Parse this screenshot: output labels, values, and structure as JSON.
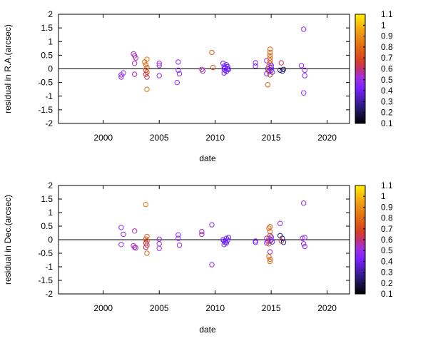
{
  "chart_data": [
    {
      "type": "scatter",
      "xlabel": "date",
      "ylabel": "residual in R.A.(arcsec)",
      "xlim": [
        1996,
        2022
      ],
      "ylim": [
        -2,
        2
      ],
      "xticks": [
        "2000",
        "2005",
        "2010",
        "2015",
        "2020"
      ],
      "yticks": [
        "-2",
        "-1.5",
        "-1",
        "-0.5",
        "0",
        "0.5",
        "1",
        "1.5",
        "2"
      ],
      "zero_line": 0,
      "colorbar": {
        "min": 0.1,
        "max": 1.1,
        "ticks": [
          "0.1",
          "0.2",
          "0.3",
          "0.4",
          "0.5",
          "0.6",
          "0.7",
          "0.8",
          "0.9",
          "1",
          "1.1"
        ]
      },
      "points": [
        {
          "x": 2001.6,
          "y": -0.3,
          "c": 0.45
        },
        {
          "x": 2001.6,
          "y": -0.22,
          "c": 0.45
        },
        {
          "x": 2001.8,
          "y": -0.15,
          "c": 0.45
        },
        {
          "x": 2002.7,
          "y": 0.55,
          "c": 0.5
        },
        {
          "x": 2002.8,
          "y": 0.48,
          "c": 0.5
        },
        {
          "x": 2002.9,
          "y": 0.4,
          "c": 0.5
        },
        {
          "x": 2002.8,
          "y": 0.2,
          "c": 0.5
        },
        {
          "x": 2002.8,
          "y": -0.2,
          "c": 0.5
        },
        {
          "x": 2003.7,
          "y": 0.25,
          "c": 0.75
        },
        {
          "x": 2003.8,
          "y": 0.15,
          "c": 0.75
        },
        {
          "x": 2003.9,
          "y": 0.35,
          "c": 0.8
        },
        {
          "x": 2003.9,
          "y": 0.05,
          "c": 0.7
        },
        {
          "x": 2003.8,
          "y": -0.05,
          "c": 0.7
        },
        {
          "x": 2003.9,
          "y": -0.12,
          "c": 0.7
        },
        {
          "x": 2003.8,
          "y": -0.2,
          "c": 0.6
        },
        {
          "x": 2003.9,
          "y": -0.3,
          "c": 0.6
        },
        {
          "x": 2003.9,
          "y": -0.75,
          "c": 0.8
        },
        {
          "x": 2005.0,
          "y": 0.2,
          "c": 0.45
        },
        {
          "x": 2005.0,
          "y": 0.12,
          "c": 0.45
        },
        {
          "x": 2005.0,
          "y": -0.25,
          "c": 0.45
        },
        {
          "x": 2006.7,
          "y": 0.25,
          "c": 0.45
        },
        {
          "x": 2006.7,
          "y": -0.05,
          "c": 0.45
        },
        {
          "x": 2006.8,
          "y": -0.18,
          "c": 0.45
        },
        {
          "x": 2006.6,
          "y": -0.5,
          "c": 0.45
        },
        {
          "x": 2008.8,
          "y": -0.02,
          "c": 0.5
        },
        {
          "x": 2008.9,
          "y": -0.08,
          "c": 0.5
        },
        {
          "x": 2009.7,
          "y": 0.6,
          "c": 0.75
        },
        {
          "x": 2009.8,
          "y": 0.05,
          "c": 0.7
        },
        {
          "x": 2010.7,
          "y": 0.2,
          "c": 0.35
        },
        {
          "x": 2010.8,
          "y": 0.1,
          "c": 0.35
        },
        {
          "x": 2010.9,
          "y": 0.05,
          "c": 0.35
        },
        {
          "x": 2011.0,
          "y": 0.15,
          "c": 0.35
        },
        {
          "x": 2010.8,
          "y": 0.0,
          "c": 0.35
        },
        {
          "x": 2010.9,
          "y": -0.05,
          "c": 0.35
        },
        {
          "x": 2011.0,
          "y": -0.1,
          "c": 0.35
        },
        {
          "x": 2010.8,
          "y": -0.15,
          "c": 0.35
        },
        {
          "x": 2011.1,
          "y": 0.08,
          "c": 0.35
        },
        {
          "x": 2011.2,
          "y": -0.02,
          "c": 0.35
        },
        {
          "x": 2011.1,
          "y": 0.0,
          "c": 0.35
        },
        {
          "x": 2013.6,
          "y": 0.22,
          "c": 0.4
        },
        {
          "x": 2013.6,
          "y": 0.1,
          "c": 0.4
        },
        {
          "x": 2014.6,
          "y": 0.3,
          "c": 0.45
        },
        {
          "x": 2014.7,
          "y": 0.0,
          "c": 0.4
        },
        {
          "x": 2014.8,
          "y": -0.1,
          "c": 0.4
        },
        {
          "x": 2014.6,
          "y": -0.18,
          "c": 0.4
        },
        {
          "x": 2014.9,
          "y": 0.72,
          "c": 0.75
        },
        {
          "x": 2014.9,
          "y": 0.6,
          "c": 0.75
        },
        {
          "x": 2014.9,
          "y": 0.5,
          "c": 0.75
        },
        {
          "x": 2014.9,
          "y": 0.4,
          "c": 0.75
        },
        {
          "x": 2014.9,
          "y": 0.3,
          "c": 0.75
        },
        {
          "x": 2014.9,
          "y": 0.2,
          "c": 0.7
        },
        {
          "x": 2014.8,
          "y": 0.1,
          "c": 0.7
        },
        {
          "x": 2014.8,
          "y": -0.05,
          "c": 0.7
        },
        {
          "x": 2014.9,
          "y": -0.22,
          "c": 0.7
        },
        {
          "x": 2014.7,
          "y": -0.58,
          "c": 0.75
        },
        {
          "x": 2015.0,
          "y": 0.05,
          "c": 0.35
        },
        {
          "x": 2015.0,
          "y": -0.05,
          "c": 0.35
        },
        {
          "x": 2015.1,
          "y": -0.12,
          "c": 0.35
        },
        {
          "x": 2015.0,
          "y": 0.12,
          "c": 0.35
        },
        {
          "x": 2015.9,
          "y": 0.22,
          "c": 0.6
        },
        {
          "x": 2015.8,
          "y": -0.05,
          "c": 0.25
        },
        {
          "x": 2016.0,
          "y": -0.08,
          "c": 0.25
        },
        {
          "x": 2016.1,
          "y": -0.02,
          "c": 0.2
        },
        {
          "x": 2017.7,
          "y": 0.12,
          "c": 0.45
        },
        {
          "x": 2017.9,
          "y": 1.45,
          "c": 0.45
        },
        {
          "x": 2018.0,
          "y": -0.05,
          "c": 0.45
        },
        {
          "x": 2018.0,
          "y": -0.25,
          "c": 0.45
        },
        {
          "x": 2017.9,
          "y": -0.88,
          "c": 0.45
        }
      ]
    },
    {
      "type": "scatter",
      "xlabel": "date",
      "ylabel": "residual in Dec.(arcsec)",
      "xlim": [
        1996,
        2022
      ],
      "ylim": [
        -2,
        2
      ],
      "xticks": [
        "2000",
        "2005",
        "2010",
        "2015",
        "2020"
      ],
      "yticks": [
        "-2",
        "-1.5",
        "-1",
        "-0.5",
        "0",
        "0.5",
        "1",
        "1.5",
        "2"
      ],
      "zero_line": 0,
      "colorbar": {
        "min": 0.1,
        "max": 1.1,
        "ticks": [
          "0.1",
          "0.2",
          "0.3",
          "0.4",
          "0.5",
          "0.6",
          "0.7",
          "0.8",
          "0.9",
          "1",
          "1.1"
        ]
      },
      "points": [
        {
          "x": 2001.6,
          "y": 0.45,
          "c": 0.45
        },
        {
          "x": 2001.8,
          "y": 0.2,
          "c": 0.45
        },
        {
          "x": 2001.6,
          "y": -0.18,
          "c": 0.45
        },
        {
          "x": 2002.8,
          "y": 0.32,
          "c": 0.5
        },
        {
          "x": 2002.7,
          "y": -0.22,
          "c": 0.5
        },
        {
          "x": 2002.8,
          "y": -0.28,
          "c": 0.5
        },
        {
          "x": 2002.9,
          "y": -0.3,
          "c": 0.5
        },
        {
          "x": 2003.8,
          "y": 1.3,
          "c": 0.8
        },
        {
          "x": 2003.9,
          "y": 0.12,
          "c": 0.75
        },
        {
          "x": 2003.8,
          "y": 0.02,
          "c": 0.7
        },
        {
          "x": 2003.9,
          "y": -0.05,
          "c": 0.7
        },
        {
          "x": 2003.8,
          "y": -0.12,
          "c": 0.6
        },
        {
          "x": 2003.9,
          "y": -0.2,
          "c": 0.6
        },
        {
          "x": 2003.8,
          "y": -0.28,
          "c": 0.6
        },
        {
          "x": 2003.9,
          "y": -0.5,
          "c": 0.75
        },
        {
          "x": 2005.0,
          "y": 0.02,
          "c": 0.45
        },
        {
          "x": 2005.0,
          "y": -0.15,
          "c": 0.45
        },
        {
          "x": 2005.0,
          "y": -0.32,
          "c": 0.45
        },
        {
          "x": 2006.7,
          "y": 0.18,
          "c": 0.45
        },
        {
          "x": 2006.7,
          "y": 0.05,
          "c": 0.45
        },
        {
          "x": 2006.8,
          "y": -0.2,
          "c": 0.45
        },
        {
          "x": 2008.8,
          "y": 0.3,
          "c": 0.5
        },
        {
          "x": 2008.8,
          "y": 0.2,
          "c": 0.5
        },
        {
          "x": 2009.7,
          "y": 0.55,
          "c": 0.45
        },
        {
          "x": 2009.7,
          "y": -0.92,
          "c": 0.45
        },
        {
          "x": 2010.7,
          "y": 0.0,
          "c": 0.35
        },
        {
          "x": 2010.8,
          "y": -0.05,
          "c": 0.35
        },
        {
          "x": 2010.9,
          "y": -0.1,
          "c": 0.35
        },
        {
          "x": 2010.8,
          "y": -0.18,
          "c": 0.35
        },
        {
          "x": 2011.0,
          "y": 0.05,
          "c": 0.35
        },
        {
          "x": 2011.1,
          "y": -0.02,
          "c": 0.35
        },
        {
          "x": 2011.2,
          "y": 0.08,
          "c": 0.35
        },
        {
          "x": 2011.0,
          "y": -0.12,
          "c": 0.35
        },
        {
          "x": 2013.6,
          "y": -0.05,
          "c": 0.4
        },
        {
          "x": 2013.6,
          "y": -0.1,
          "c": 0.4
        },
        {
          "x": 2014.6,
          "y": 0.05,
          "c": 0.45
        },
        {
          "x": 2014.7,
          "y": -0.05,
          "c": 0.4
        },
        {
          "x": 2014.6,
          "y": -0.12,
          "c": 0.4
        },
        {
          "x": 2014.9,
          "y": 0.48,
          "c": 0.75
        },
        {
          "x": 2014.8,
          "y": 0.42,
          "c": 0.75
        },
        {
          "x": 2014.9,
          "y": 0.3,
          "c": 0.75
        },
        {
          "x": 2014.9,
          "y": 0.15,
          "c": 0.7
        },
        {
          "x": 2014.8,
          "y": 0.05,
          "c": 0.7
        },
        {
          "x": 2014.9,
          "y": -0.05,
          "c": 0.7
        },
        {
          "x": 2014.8,
          "y": -0.15,
          "c": 0.7
        },
        {
          "x": 2014.9,
          "y": -0.45,
          "c": 0.5
        },
        {
          "x": 2014.8,
          "y": -0.62,
          "c": 0.75
        },
        {
          "x": 2014.9,
          "y": -0.72,
          "c": 0.75
        },
        {
          "x": 2014.9,
          "y": -0.8,
          "c": 0.75
        },
        {
          "x": 2015.0,
          "y": 0.0,
          "c": 0.35
        },
        {
          "x": 2015.1,
          "y": -0.08,
          "c": 0.35
        },
        {
          "x": 2015.0,
          "y": 0.1,
          "c": 0.35
        },
        {
          "x": 2015.8,
          "y": 0.6,
          "c": 0.45
        },
        {
          "x": 2015.8,
          "y": 0.15,
          "c": 0.25
        },
        {
          "x": 2016.0,
          "y": 0.05,
          "c": 0.25
        },
        {
          "x": 2015.9,
          "y": -0.05,
          "c": 0.6
        },
        {
          "x": 2016.1,
          "y": -0.1,
          "c": 0.25
        },
        {
          "x": 2017.8,
          "y": 0.05,
          "c": 0.45
        },
        {
          "x": 2017.9,
          "y": 1.35,
          "c": 0.45
        },
        {
          "x": 2018.0,
          "y": 0.08,
          "c": 0.45
        },
        {
          "x": 2017.9,
          "y": -0.15,
          "c": 0.45
        },
        {
          "x": 2018.0,
          "y": -0.25,
          "c": 0.45
        }
      ]
    }
  ]
}
